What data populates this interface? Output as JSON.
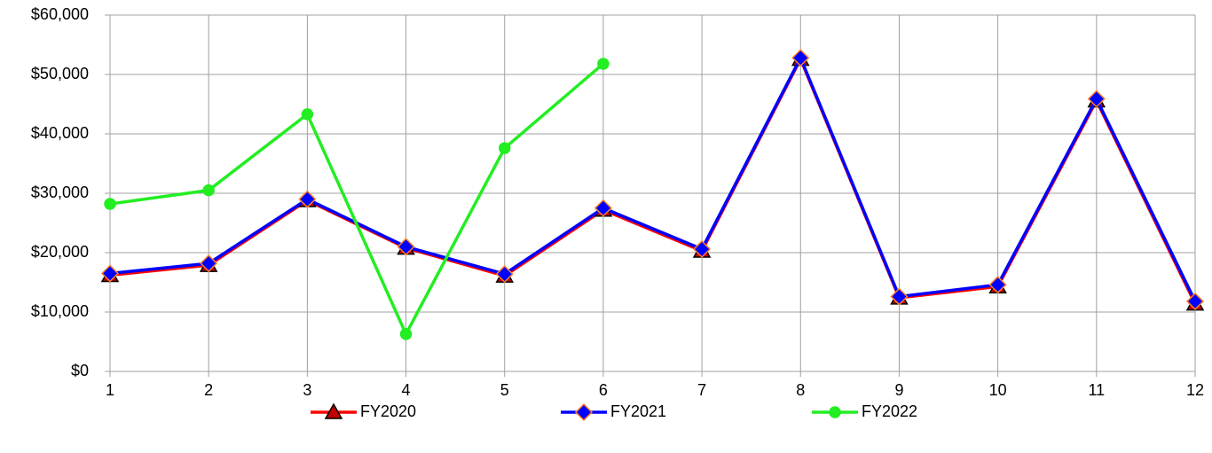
{
  "chart_data": {
    "type": "line",
    "x": [
      1,
      2,
      3,
      4,
      5,
      6,
      7,
      8,
      9,
      10,
      11,
      12
    ],
    "series": [
      {
        "name": "FY2020",
        "color": "#ff0000",
        "marker": "triangle",
        "marker_fill": "#c00000",
        "marker_stroke": "#000000",
        "values": [
          16200,
          17900,
          28800,
          20800,
          16100,
          27200,
          20300,
          52600,
          12400,
          14300,
          45600,
          11400
        ]
      },
      {
        "name": "FY2021",
        "color": "#0000ff",
        "marker": "diamond",
        "marker_fill": "#0000ff",
        "marker_stroke": "#ff7f27",
        "values": [
          16500,
          18200,
          29000,
          21000,
          16400,
          27500,
          20600,
          52800,
          12600,
          14600,
          45900,
          11800
        ]
      },
      {
        "name": "FY2022",
        "color": "#22ee22",
        "marker": "circle",
        "marker_fill": "#22ee22",
        "marker_stroke": "#22ee22",
        "values": [
          28200,
          30500,
          43300,
          6300,
          37600,
          51800,
          null,
          null,
          null,
          null,
          null,
          null
        ]
      }
    ],
    "xlim": [
      1,
      12
    ],
    "xticks": [
      1,
      2,
      3,
      4,
      5,
      6,
      7,
      8,
      9,
      10,
      11,
      12
    ],
    "ylim": [
      0,
      60000
    ],
    "yticks": [
      {
        "value": 0,
        "label": "$0"
      },
      {
        "value": 10000,
        "label": "$10,000"
      },
      {
        "value": 20000,
        "label": "$20,000"
      },
      {
        "value": 30000,
        "label": "$30,000"
      },
      {
        "value": 40000,
        "label": "$40,000"
      },
      {
        "value": 50000,
        "label": "$50,000"
      },
      {
        "value": 60000,
        "label": "$60,000"
      }
    ],
    "grid": true,
    "legend": "bottom"
  }
}
